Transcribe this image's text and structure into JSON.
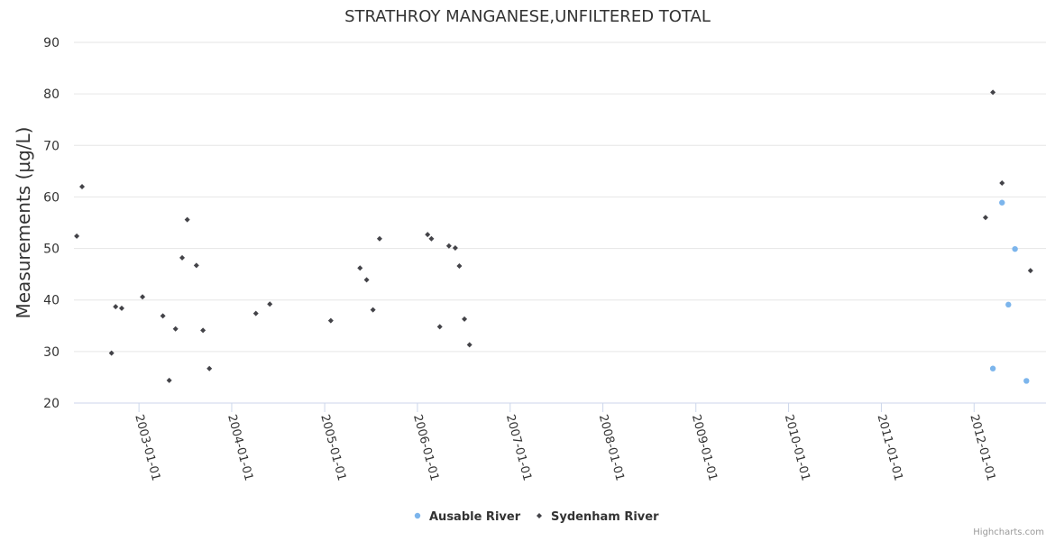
{
  "chart_data": {
    "type": "scatter",
    "title": "STRATHROY MANGANESE,UNFILTERED TOTAL",
    "ylabel": "Measurements (µg/L)",
    "xlabel": "",
    "ylim": [
      20,
      90
    ],
    "yticks": [
      20,
      30,
      40,
      50,
      60,
      70,
      80,
      90
    ],
    "xlim": [
      "2002-04-20",
      "2012-10-10"
    ],
    "xticks": [
      "2003-01-01",
      "2004-01-01",
      "2005-01-01",
      "2006-01-01",
      "2007-01-01",
      "2008-01-01",
      "2009-01-01",
      "2010-01-01",
      "2011-01-01",
      "2012-01-01"
    ],
    "grid": true,
    "legend_position": "bottom-center",
    "series": [
      {
        "name": "Ausable River",
        "color": "#7cb5ec",
        "marker": "circle",
        "points": [
          {
            "x": "2012-03-15",
            "y": 26.7
          },
          {
            "x": "2012-04-20",
            "y": 58.9
          },
          {
            "x": "2012-05-15",
            "y": 39.1
          },
          {
            "x": "2012-06-10",
            "y": 49.9
          },
          {
            "x": "2012-07-25",
            "y": 24.3
          }
        ]
      },
      {
        "name": "Sydenham River",
        "color": "#434348",
        "marker": "diamond",
        "points": [
          {
            "x": "2002-05-01",
            "y": 52.4
          },
          {
            "x": "2002-05-22",
            "y": 62.0
          },
          {
            "x": "2002-09-15",
            "y": 29.7
          },
          {
            "x": "2002-10-01",
            "y": 38.7
          },
          {
            "x": "2002-10-25",
            "y": 38.4
          },
          {
            "x": "2003-01-15",
            "y": 40.6
          },
          {
            "x": "2003-04-05",
            "y": 36.9
          },
          {
            "x": "2003-04-30",
            "y": 24.4
          },
          {
            "x": "2003-05-25",
            "y": 34.4
          },
          {
            "x": "2003-06-20",
            "y": 48.2
          },
          {
            "x": "2003-07-10",
            "y": 55.6
          },
          {
            "x": "2003-08-15",
            "y": 46.7
          },
          {
            "x": "2003-09-10",
            "y": 34.1
          },
          {
            "x": "2003-10-05",
            "y": 26.7
          },
          {
            "x": "2004-04-05",
            "y": 37.4
          },
          {
            "x": "2004-05-30",
            "y": 39.2
          },
          {
            "x": "2005-01-25",
            "y": 36.0
          },
          {
            "x": "2005-05-20",
            "y": 46.2
          },
          {
            "x": "2005-06-15",
            "y": 43.9
          },
          {
            "x": "2005-07-10",
            "y": 38.1
          },
          {
            "x": "2005-08-05",
            "y": 51.9
          },
          {
            "x": "2006-02-10",
            "y": 52.7
          },
          {
            "x": "2006-02-25",
            "y": 51.9
          },
          {
            "x": "2006-03-30",
            "y": 34.8
          },
          {
            "x": "2006-05-05",
            "y": 50.5
          },
          {
            "x": "2006-05-30",
            "y": 50.1
          },
          {
            "x": "2006-06-15",
            "y": 46.6
          },
          {
            "x": "2006-07-05",
            "y": 36.3
          },
          {
            "x": "2006-07-25",
            "y": 31.3
          },
          {
            "x": "2012-02-15",
            "y": 56.0
          },
          {
            "x": "2012-03-15",
            "y": 80.3
          },
          {
            "x": "2012-04-20",
            "y": 62.7
          },
          {
            "x": "2012-08-10",
            "y": 45.7
          }
        ]
      }
    ]
  },
  "credits": "Highcharts.com"
}
